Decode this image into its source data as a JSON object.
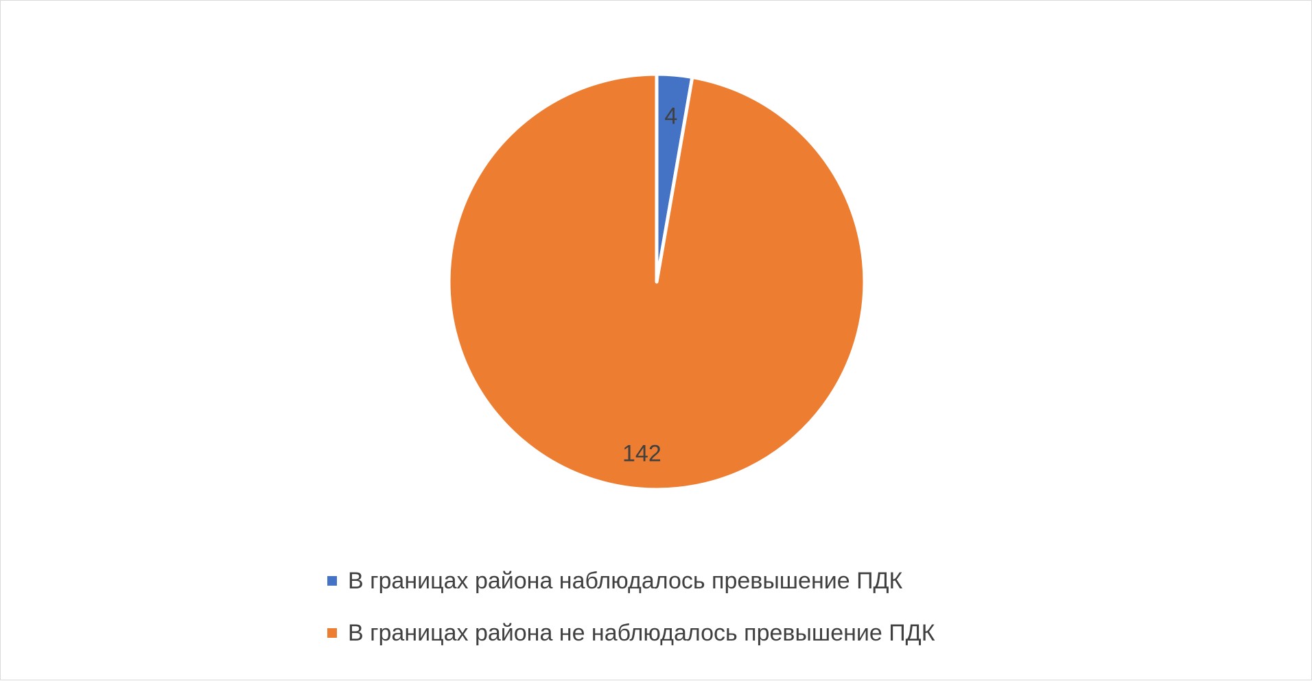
{
  "chart_data": {
    "type": "pie",
    "title": "",
    "slices": [
      {
        "label": "В границах района наблюдалось превышение ПДК",
        "value": 4,
        "value_label": "4",
        "color": "#4472C4"
      },
      {
        "label": "В границах района не наблюдалось превышение ПДК",
        "value": 142,
        "value_label": "142",
        "color": "#ED7D31"
      }
    ],
    "legend_position": "bottom"
  }
}
